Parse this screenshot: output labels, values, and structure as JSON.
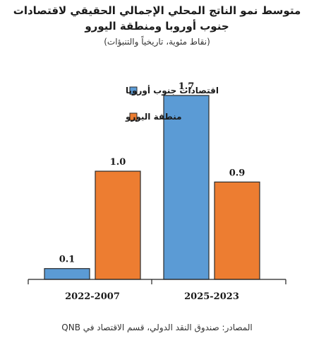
{
  "chart_data": {
    "type": "bar",
    "title": "متوسط نمو الناتج المحلي الإجمالي الحقيقي لاقتصادات جنوب أوروبا ومنطقة اليورو",
    "subtitle": "(نقاط مئوية، تاريخياً والتنبؤات)",
    "categories": [
      "2022-2007",
      "2025-2023"
    ],
    "series": [
      {
        "name": "اقتصادات جنوب أوروبا",
        "values": [
          0.1,
          1.7
        ],
        "color": "#5b9bd5"
      },
      {
        "name": "منطقة اليورو",
        "values": [
          1.0,
          0.9
        ],
        "color": "#ed7d31"
      }
    ],
    "value_labels": [
      [
        "0.1",
        "1.7"
      ],
      [
        "1.0",
        "0.9"
      ]
    ],
    "ylim": [
      0,
      1.85
    ],
    "grid": false,
    "legend_position": "top-left"
  },
  "source": "المصادر: صندوق النقد الدولي، قسم الاقتصاد في QNB"
}
